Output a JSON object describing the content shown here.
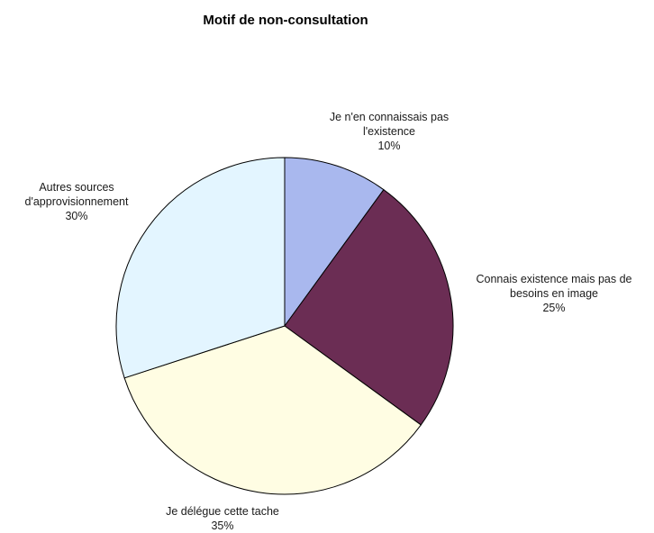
{
  "chart_data": {
    "type": "pie",
    "title": "Motif de non-consultation",
    "start_angle_deg": 0,
    "direction": "clockwise",
    "slices": [
      {
        "label_lines": [
          "Je n'en connaissais pas",
          "l'existence"
        ],
        "value_label": "10%",
        "value": 10,
        "color": "#A9B8EE"
      },
      {
        "label_lines": [
          "Connais existence mais pas de",
          "besoins en image"
        ],
        "value_label": "25%",
        "value": 25,
        "color": "#6B2D54"
      },
      {
        "label_lines": [
          "Je délégue cette tache"
        ],
        "value_label": "35%",
        "value": 35,
        "color": "#FFFDE3"
      },
      {
        "label_lines": [
          "Autres sources",
          "d'approvisionnement"
        ],
        "value_label": "30%",
        "value": 30,
        "color": "#E3F5FF"
      }
    ]
  }
}
